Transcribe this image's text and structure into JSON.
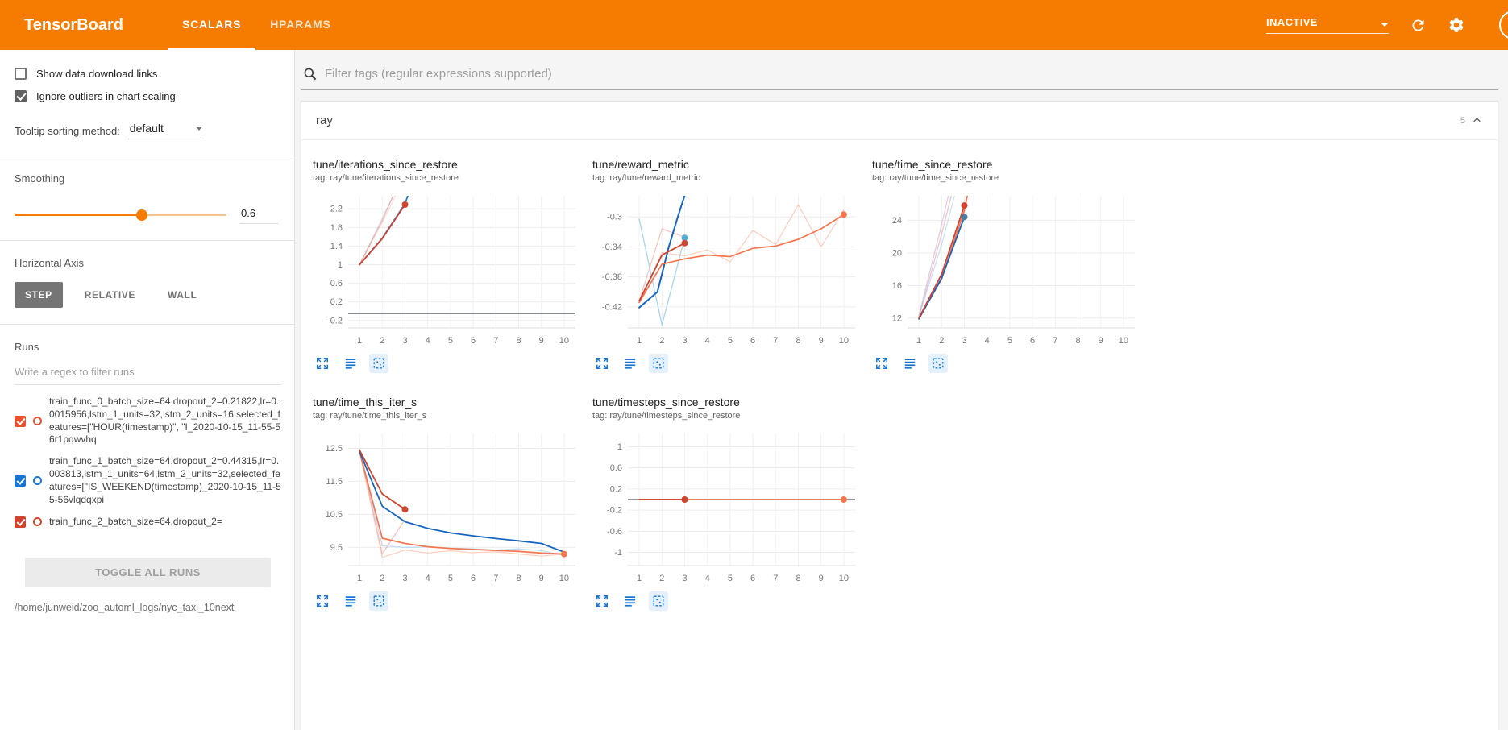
{
  "header": {
    "title": "TensorBoard",
    "tabs": [
      {
        "label": "SCALARS",
        "active": true
      },
      {
        "label": "HPARAMS",
        "active": false
      }
    ],
    "status_dropdown": "INACTIVE"
  },
  "sidebar": {
    "show_download_label": "Show data download links",
    "show_download_checked": false,
    "ignore_outliers_label": "Ignore outliers in chart scaling",
    "ignore_outliers_checked": true,
    "tooltip_label": "Tooltip sorting method:",
    "tooltip_value": "default",
    "smoothing_label": "Smoothing",
    "smoothing_value": "0.6",
    "haxis_label": "Horizontal Axis",
    "haxis_options": [
      "STEP",
      "RELATIVE",
      "WALL"
    ],
    "haxis_selected": "STEP",
    "runs_label": "Runs",
    "runs_filter_placeholder": "Write a regex to filter runs",
    "runs": [
      {
        "label": "train_func_0_batch_size=64,dropout_2=0.21822,lr=0.0015956,lstm_1_units=32,lstm_2_units=16,selected_features=[\"HOUR(timestamp)\", \"I_2020-10-15_11-55-56r1pqwvhq",
        "checked": true,
        "color": "#e8502e"
      },
      {
        "label": "train_func_1_batch_size=64,dropout_2=0.44315,lr=0.003813,lstm_1_units=64,lstm_2_units=32,selected_features=[\"IS_WEEKEND(timestamp)_2020-10-15_11-55-56vlqdqxpi",
        "checked": true,
        "color": "#1976d2"
      },
      {
        "label": "train_func_2_batch_size=64,dropout_2=",
        "checked": true,
        "color": "#d0432e"
      }
    ],
    "toggle_all_label": "TOGGLE ALL RUNS",
    "log_dir": "/home/junweid/zoo_automl_logs/nyc_taxi_10next"
  },
  "main": {
    "filter_placeholder": "Filter tags (regular expressions supported)",
    "group": {
      "title": "ray",
      "count": "5"
    }
  },
  "chart_data": [
    {
      "type": "line",
      "title": "tune/iterations_since_restore",
      "tag": "tag: ray/tune/iterations_since_restore",
      "xlim": [
        0.5,
        10.5
      ],
      "xticks": [
        1,
        2,
        3,
        4,
        5,
        6,
        7,
        8,
        9,
        10
      ],
      "ylim": [
        -0.36,
        2.48
      ],
      "yticks": [
        2.2,
        1.8,
        1.4,
        1,
        0.6,
        0.2,
        -0.2
      ],
      "hline": {
        "y": -0.05,
        "color": "#5f6368"
      },
      "series": [
        {
          "name": "train_func_1 raw",
          "color": "#1976d2",
          "opacity": 0.18,
          "width": 1.3,
          "points": [
            [
              1,
              1
            ],
            [
              2,
              2
            ],
            [
              3,
              3
            ]
          ]
        },
        {
          "name": "train_func_2 raw",
          "color": "#ff7043",
          "opacity": 0.22,
          "width": 1.3,
          "points": [
            [
              1,
              1
            ],
            [
              2.1,
              2
            ],
            [
              3.1,
              3
            ]
          ]
        },
        {
          "name": "train_func_0 raw",
          "color": "#e57368",
          "opacity": 0.45,
          "width": 1.3,
          "points": [
            [
              1,
              1
            ],
            [
              2,
              1.95
            ],
            [
              2.9,
              2.95
            ]
          ]
        },
        {
          "name": "train_func_1 smoothed",
          "color": "#1976d2",
          "opacity": 1,
          "width": 1.7,
          "points": [
            [
              1,
              1
            ],
            [
              2,
              1.57
            ],
            [
              3,
              2.31
            ],
            [
              3.5,
              3
            ]
          ]
        },
        {
          "name": "train_func_0 smoothed",
          "color": "#d0432e",
          "opacity": 1,
          "width": 1.8,
          "points": [
            [
              1,
              1
            ],
            [
              2,
              1.56
            ],
            [
              3,
              2.29
            ]
          ],
          "dot": [
            3,
            2.29
          ]
        }
      ]
    },
    {
      "type": "line",
      "title": "tune/reward_metric",
      "tag": "tag: ray/tune/reward_metric",
      "xlim": [
        0.5,
        10.5
      ],
      "xticks": [
        1,
        2,
        3,
        4,
        5,
        6,
        7,
        8,
        9,
        10
      ],
      "ylim": [
        -0.448,
        -0.272
      ],
      "yticks": [
        -0.3,
        -0.34,
        -0.38,
        -0.42
      ],
      "series": [
        {
          "name": "light blue raw",
          "color": "#6ab7e0",
          "opacity": 0.55,
          "width": 1.4,
          "points": [
            [
              1,
              -0.303
            ],
            [
              2,
              -0.444
            ],
            [
              3,
              -0.328
            ]
          ],
          "dot": [
            3,
            -0.328
          ],
          "dot_color": "#55aed8"
        },
        {
          "name": "orange raw",
          "color": "#ff8a65",
          "opacity": 0.4,
          "width": 1.3,
          "points": [
            [
              1,
              -0.414
            ],
            [
              2,
              -0.348
            ],
            [
              3,
              -0.352
            ],
            [
              4,
              -0.344
            ],
            [
              5,
              -0.36
            ],
            [
              6,
              -0.318
            ],
            [
              7,
              -0.337
            ],
            [
              8,
              -0.284
            ],
            [
              9,
              -0.34
            ],
            [
              10,
              -0.291
            ]
          ]
        },
        {
          "name": "red raw",
          "color": "#e57368",
          "opacity": 0.4,
          "width": 1.3,
          "points": [
            [
              1,
              -0.412
            ],
            [
              2,
              -0.316
            ],
            [
              3,
              -0.327
            ]
          ]
        },
        {
          "name": "blue smoothed",
          "color": "#1565c0",
          "opacity": 1,
          "width": 2,
          "points": [
            [
              1,
              -0.421
            ],
            [
              1.8,
              -0.4
            ],
            [
              2.3,
              -0.34
            ],
            [
              2.7,
              -0.3
            ],
            [
              3.1,
              -0.262
            ]
          ]
        },
        {
          "name": "orange smoothed",
          "color": "#f4764e",
          "opacity": 1,
          "width": 1.7,
          "points": [
            [
              1,
              -0.414
            ],
            [
              2,
              -0.363
            ],
            [
              3,
              -0.356
            ],
            [
              4,
              -0.351
            ],
            [
              5,
              -0.353
            ],
            [
              6,
              -0.342
            ],
            [
              7,
              -0.339
            ],
            [
              8,
              -0.33
            ],
            [
              9,
              -0.316
            ],
            [
              10,
              -0.297
            ]
          ],
          "dot": [
            10,
            -0.297
          ]
        },
        {
          "name": "red smoothed",
          "color": "#d0432e",
          "opacity": 1,
          "width": 1.8,
          "points": [
            [
              1,
              -0.412
            ],
            [
              2,
              -0.351
            ],
            [
              3,
              -0.335
            ]
          ],
          "dot": [
            3,
            -0.335
          ]
        }
      ]
    },
    {
      "type": "line",
      "title": "tune/time_since_restore",
      "tag": "tag: ray/tune/time_since_restore",
      "xlim": [
        0.5,
        10.5
      ],
      "xticks": [
        1,
        2,
        3,
        4,
        5,
        6,
        7,
        8,
        9,
        10
      ],
      "ylim": [
        10.8,
        27
      ],
      "yticks": [
        24,
        20,
        16,
        12
      ],
      "series": [
        {
          "name": "lavender raw",
          "color": "#b39ddb",
          "opacity": 0.5,
          "width": 1.3,
          "points": [
            [
              1,
              12.3
            ],
            [
              2,
              23.5
            ],
            [
              2.55,
              30
            ]
          ]
        },
        {
          "name": "pink raw",
          "color": "#ef9a9a",
          "opacity": 0.6,
          "width": 1.3,
          "points": [
            [
              1,
              12.1
            ],
            [
              2,
              22.3
            ],
            [
              2.7,
              30
            ]
          ]
        },
        {
          "name": "blue raw",
          "color": "#90caf9",
          "opacity": 0.5,
          "width": 1.3,
          "points": [
            [
              1,
              12.2
            ],
            [
              2,
              21
            ],
            [
              2.85,
              30
            ]
          ]
        },
        {
          "name": "orange smoothed",
          "color": "#f4764e",
          "opacity": 1,
          "width": 1.7,
          "points": [
            [
              1,
              12
            ],
            [
              2,
              16.8
            ],
            [
              3,
              25.2
            ],
            [
              3.35,
              30
            ]
          ]
        },
        {
          "name": "blue smoothed",
          "color": "#1565c0",
          "opacity": 1,
          "width": 1.8,
          "points": [
            [
              1,
              11.9
            ],
            [
              2,
              16.9
            ],
            [
              3,
              24.4
            ]
          ],
          "dot": [
            3,
            24.4
          ],
          "dot_color": "#4e7d9e"
        },
        {
          "name": "red smoothed",
          "color": "#d0432e",
          "opacity": 1,
          "width": 1.8,
          "points": [
            [
              1,
              12
            ],
            [
              2,
              17.4
            ],
            [
              3,
              25.8
            ]
          ],
          "dot": [
            3,
            25.8
          ]
        }
      ]
    },
    {
      "type": "line",
      "title": "tune/time_this_iter_s",
      "tag": "tag: ray/tune/time_this_iter_s",
      "xlim": [
        0.5,
        10.5
      ],
      "xticks": [
        1,
        2,
        3,
        4,
        5,
        6,
        7,
        8,
        9,
        10
      ],
      "ylim": [
        8.95,
        12.95
      ],
      "yticks": [
        12.5,
        11.5,
        10.5,
        9.5
      ],
      "series": [
        {
          "name": "light blue raw",
          "color": "#64b5f6",
          "opacity": 0.4,
          "width": 1.3,
          "points": [
            [
              1,
              12.4
            ],
            [
              2,
              9.55
            ],
            [
              3,
              9.5
            ],
            [
              4,
              9.52
            ],
            [
              5,
              9.48
            ],
            [
              6,
              9.46
            ],
            [
              7,
              9.42
            ],
            [
              8,
              9.46
            ],
            [
              9,
              9.4
            ],
            [
              10,
              9.26
            ]
          ]
        },
        {
          "name": "pink raw",
          "color": "#ef9a9a",
          "opacity": 0.6,
          "width": 1.3,
          "points": [
            [
              1,
              12.45
            ],
            [
              2,
              9.3
            ],
            [
              3,
              10.35
            ]
          ]
        },
        {
          "name": "light orange raw",
          "color": "#ffab91",
          "opacity": 0.55,
          "width": 1.3,
          "points": [
            [
              1,
              12.4
            ],
            [
              2,
              9.2
            ],
            [
              3,
              9.42
            ],
            [
              4,
              9.33
            ],
            [
              5,
              9.4
            ],
            [
              6,
              9.34
            ],
            [
              7,
              9.37
            ],
            [
              8,
              9.3
            ],
            [
              9,
              9.24
            ],
            [
              10,
              9.3
            ]
          ]
        },
        {
          "name": "orange smoothed",
          "color": "#f4764e",
          "opacity": 1,
          "width": 1.7,
          "points": [
            [
              1,
              12.4
            ],
            [
              2,
              9.78
            ],
            [
              3,
              9.62
            ],
            [
              4,
              9.52
            ],
            [
              5,
              9.47
            ],
            [
              6,
              9.44
            ],
            [
              7,
              9.41
            ],
            [
              8,
              9.38
            ],
            [
              9,
              9.33
            ],
            [
              10,
              9.3
            ]
          ],
          "dot": [
            10,
            9.3
          ]
        },
        {
          "name": "blue smoothed",
          "color": "#1565c0",
          "opacity": 1,
          "width": 1.8,
          "points": [
            [
              1,
              12.4
            ],
            [
              2,
              10.75
            ],
            [
              3,
              10.28
            ],
            [
              4,
              10.08
            ],
            [
              5,
              9.94
            ],
            [
              6,
              9.85
            ],
            [
              7,
              9.77
            ],
            [
              8,
              9.7
            ],
            [
              9,
              9.62
            ],
            [
              10,
              9.36
            ]
          ]
        },
        {
          "name": "red smoothed",
          "color": "#d0432e",
          "opacity": 1,
          "width": 1.8,
          "points": [
            [
              1,
              12.45
            ],
            [
              2,
              11.12
            ],
            [
              3,
              10.65
            ]
          ],
          "dot": [
            3,
            10.65
          ]
        }
      ]
    },
    {
      "type": "line",
      "title": "tune/timesteps_since_restore",
      "tag": "tag: ray/tune/timesteps_since_restore",
      "xlim": [
        0.5,
        10.5
      ],
      "xticks": [
        1,
        2,
        3,
        4,
        5,
        6,
        7,
        8,
        9,
        10
      ],
      "ylim": [
        -1.25,
        1.25
      ],
      "yticks": [
        1,
        0.6,
        0.2,
        -0.2,
        -0.6,
        -1
      ],
      "hline": {
        "y": 0,
        "color": "#757575"
      },
      "series": [
        {
          "name": "orange smoothed",
          "color": "#f4764e",
          "opacity": 1,
          "width": 1.7,
          "points": [
            [
              1,
              0
            ],
            [
              10,
              0
            ]
          ],
          "dot": [
            10,
            0
          ]
        },
        {
          "name": "red smoothed",
          "color": "#d0432e",
          "opacity": 1,
          "width": 1.8,
          "points": [
            [
              1,
              0
            ],
            [
              3,
              0
            ]
          ],
          "dot": [
            3,
            0
          ]
        }
      ]
    }
  ]
}
